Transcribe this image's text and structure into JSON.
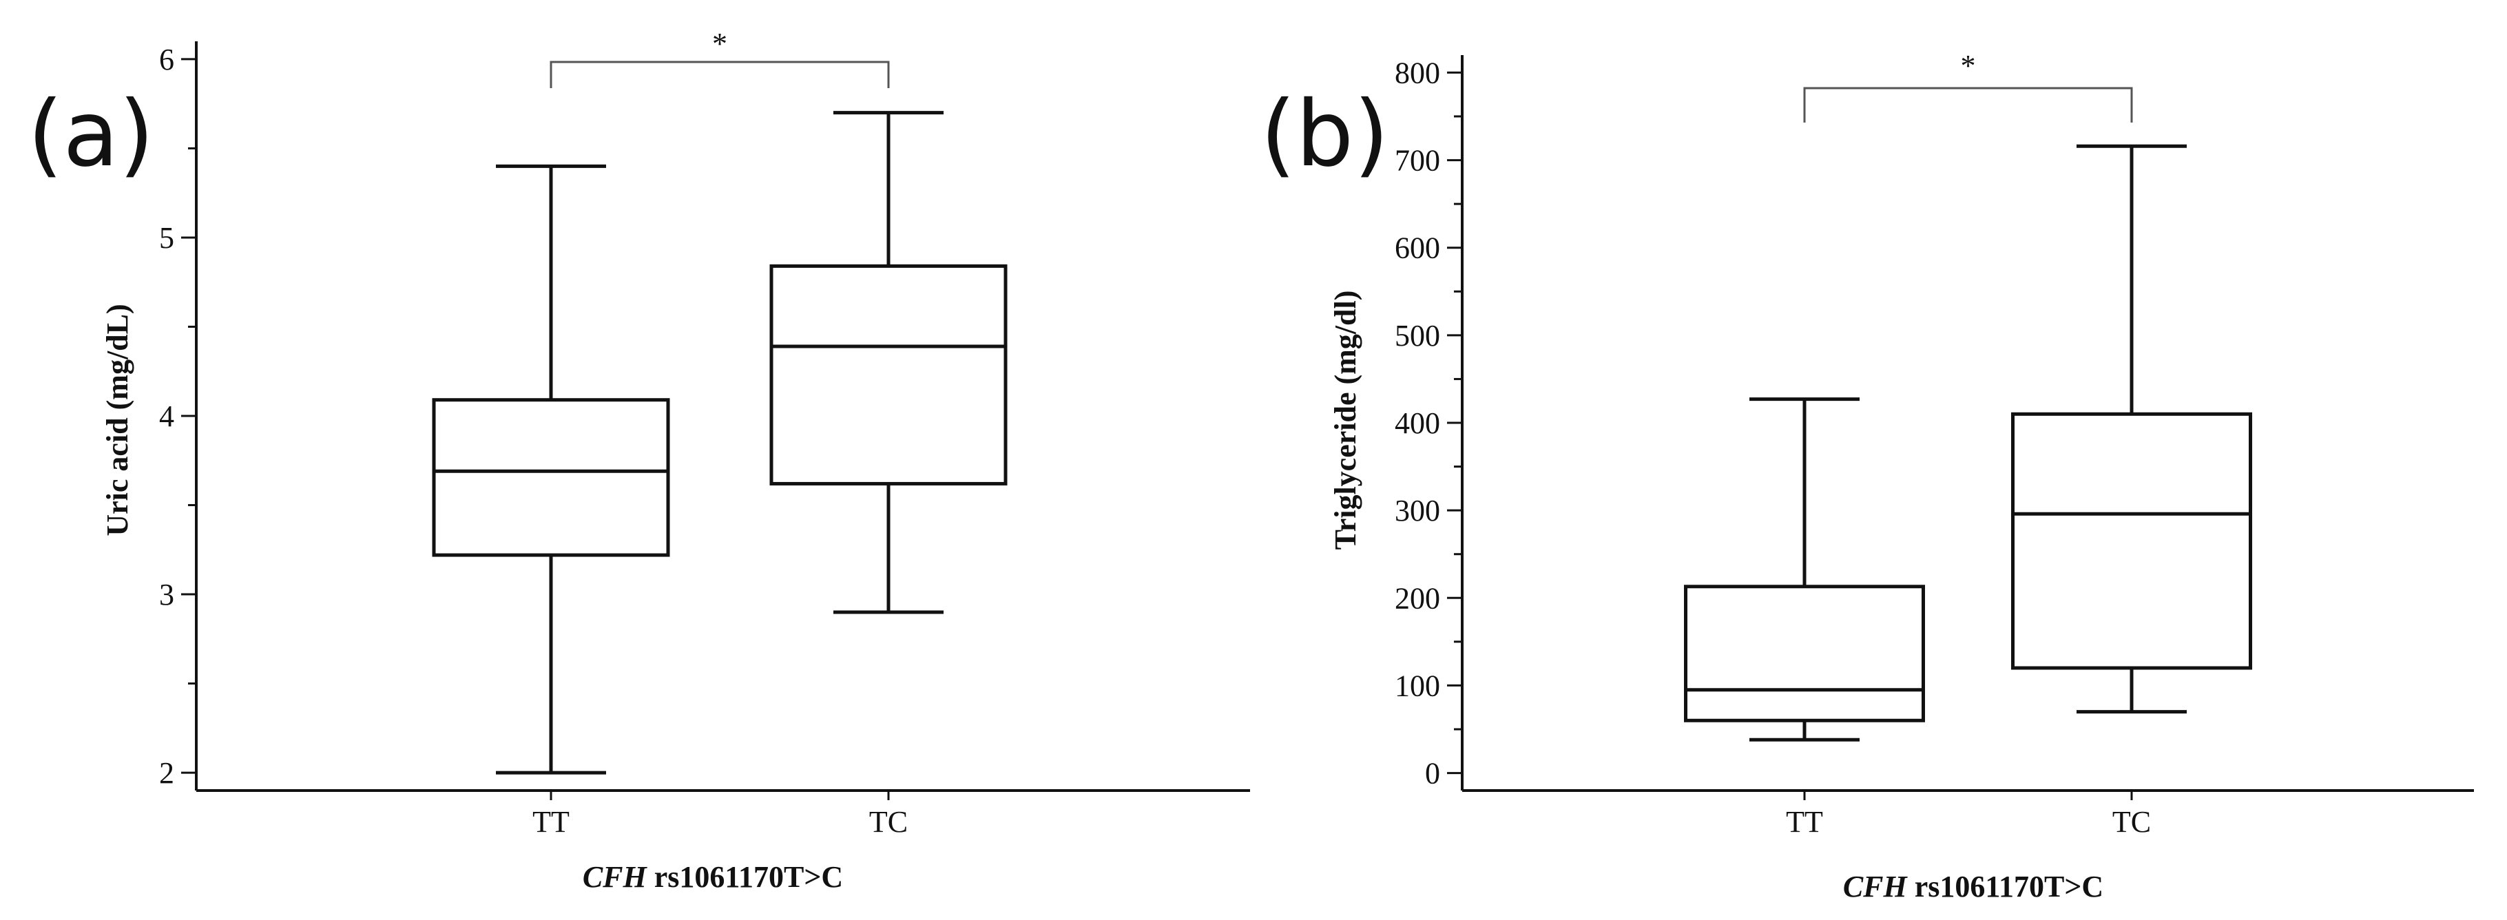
{
  "chart_data": [
    {
      "type": "box",
      "panel_label": "(a)",
      "xlabel_italic": "CFH",
      "xlabel_rest": " rs1061170T>C",
      "ylabel": "Uric acid (mg/dL)",
      "ylim": [
        1.9,
        6.1
      ],
      "yticks": [
        2,
        3,
        4,
        5,
        6
      ],
      "minor_step": 0.5,
      "categories": [
        "TT",
        "TC"
      ],
      "boxes": [
        {
          "name": "TT",
          "whisker_low": 2.0,
          "q1": 3.22,
          "median": 3.69,
          "q3": 4.09,
          "whisker_high": 5.4
        },
        {
          "name": "TC",
          "whisker_low": 2.9,
          "q1": 3.62,
          "median": 4.39,
          "q3": 4.84,
          "whisker_high": 5.7
        }
      ],
      "significance": {
        "between": [
          "TT",
          "TC"
        ],
        "label": "*"
      }
    },
    {
      "type": "box",
      "panel_label": "(b)",
      "xlabel_italic": "CFH",
      "xlabel_rest": " rs1061170T>C",
      "ylabel": "Triglyceride (mg/dl)",
      "ylim": [
        -20,
        820
      ],
      "yticks": [
        0,
        100,
        200,
        300,
        400,
        500,
        600,
        700,
        800
      ],
      "minor_step": 50,
      "categories": [
        "TT",
        "TC"
      ],
      "boxes": [
        {
          "name": "TT",
          "whisker_low": 38,
          "q1": 60,
          "median": 95,
          "q3": 213,
          "whisker_high": 427
        },
        {
          "name": "TC",
          "whisker_low": 70,
          "q1": 120,
          "median": 296,
          "q3": 410,
          "whisker_high": 716
        }
      ],
      "significance": {
        "between": [
          "TT",
          "TC"
        ],
        "label": "*"
      }
    }
  ]
}
